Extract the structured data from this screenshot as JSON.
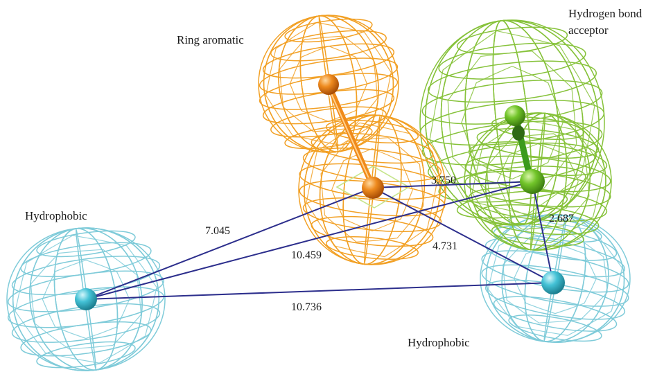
{
  "features": {
    "ring_aromatic": {
      "label": "Ring aromatic",
      "color": "#f2a024"
    },
    "hbond_acceptor": {
      "label_line1": "Hydrogen bond",
      "label_line2": "acceptor",
      "color": "#86c23a"
    },
    "hydrophobic_left": {
      "label": "Hydrophobic",
      "color": "#7fcbd9"
    },
    "hydrophobic_right": {
      "label": "Hydrophobic",
      "color": "#7fcbd9"
    }
  },
  "distances": {
    "ring_to_hba": "3.750",
    "hba_to_hydrophobic_right": "2.687",
    "ring_to_hydrophobic_left": "7.045",
    "hba_to_hydrophobic_left": "10.459",
    "ring_to_hydrophobic_right": "4.731",
    "hydrophobic_left_to_right": "10.736"
  },
  "colors": {
    "distance_line": "#2c2e8c",
    "ring_ball": "#e87a12",
    "ring_vector": "#f08a1a",
    "hba_ball": "#6cc022",
    "hba_vector": "#3c9a1c",
    "hydrophobic_ball": "#3ab8cc"
  }
}
